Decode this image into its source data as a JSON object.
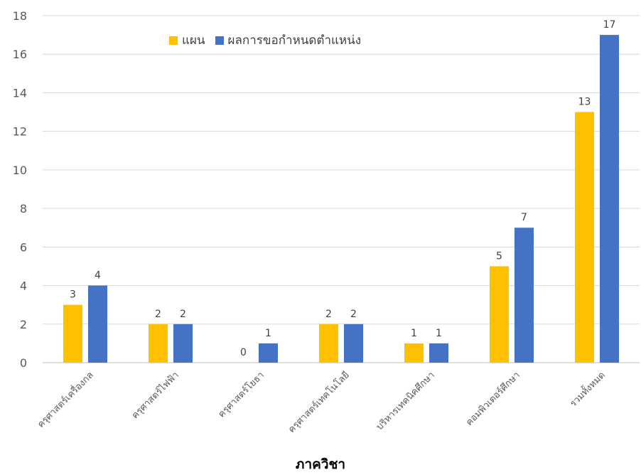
{
  "chart_data": {
    "type": "bar",
    "title": "",
    "xlabel": "ภาควิชา",
    "ylabel": "",
    "ylim": [
      0,
      18
    ],
    "yticks": [
      0,
      2,
      4,
      6,
      8,
      10,
      12,
      14,
      16,
      18
    ],
    "grid": true,
    "legend_position": "top",
    "categories": [
      "ครุศาสตร์เครื่องกล",
      "ครุศาสตร์ไฟฟ้า",
      "ครุศาสตร์โยธา",
      "ครุศาสตร์เทคโนโลยี",
      "บริหารเทคนิคศึกษา",
      "คอมพิวเตอร์ศึกษา",
      "รวมทั้งหมด"
    ],
    "series": [
      {
        "name": "แผน",
        "color": "#FFC000",
        "values": [
          3,
          2,
          0,
          2,
          1,
          5,
          13
        ]
      },
      {
        "name": "ผลการขอกำหนดตำแหน่ง",
        "color": "#4472C4",
        "values": [
          4,
          2,
          1,
          2,
          1,
          7,
          17
        ]
      }
    ]
  }
}
